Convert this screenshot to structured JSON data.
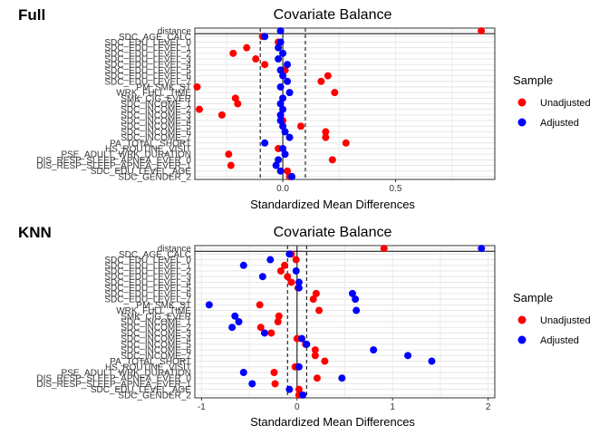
{
  "legend": {
    "title": "Sample",
    "entries": [
      {
        "label": "Unadjusted",
        "color": "#ff0000"
      },
      {
        "label": "Adjusted",
        "color": "#0000ff"
      }
    ]
  },
  "chart_data": [
    {
      "type": "scatter",
      "panel_label": "Full",
      "title": "Covariate Balance",
      "xlabel": "Standardized Mean Differences",
      "ylabel": "",
      "xlim": [
        -0.39,
        0.94
      ],
      "xticks": [
        "0.0",
        "0.5"
      ],
      "xtick_values": [
        0,
        0.5
      ],
      "thresholds": [
        -0.1,
        0.1
      ],
      "grid": true,
      "legend_position": "right",
      "categories": [
        "distance",
        "SDC_AGE_CALC",
        "SDC_EDU_LEVEL_0",
        "SDC_EDU_LEVEL_1",
        "SDC_EDU_LEVEL_2",
        "SDC_EDU_LEVEL_3",
        "SDC_EDU_LEVEL_4",
        "SDC_EDU_LEVEL_5",
        "SDC_EDU_LEVEL_6",
        "SDC_EDU_LEVEL_7",
        "PM_SMK_ST",
        "WRK_FULL_TIME",
        "SMK_CIG_EVER",
        "SDC_INCOME_1",
        "SDC_INCOME_2",
        "SDC_INCOME_3",
        "SDC_INCOME_4",
        "SDC_INCOME_5",
        "SDC_INCOME_6",
        "SDC_INCOME_7",
        "PA_TOTAL_SHORT",
        "HS_ROUTINE_VISIT",
        "PSE_ADULT_WRK_DURATION",
        "DIS_RESP_SLEEP_APNEA_EVER_0",
        "DIS_RESP_SLEEP_APNEA_EVER_1",
        "SDC_EDU_LEVEL_AGE",
        "SDC_GENDER_2"
      ],
      "series": [
        {
          "name": "Unadjusted",
          "color": "#ff0000",
          "values": [
            0.88,
            -0.09,
            -0.02,
            -0.16,
            -0.22,
            -0.12,
            -0.08,
            0.01,
            0.2,
            0.17,
            -0.38,
            0.23,
            -0.21,
            -0.2,
            -0.37,
            -0.27,
            0.0,
            0.08,
            0.19,
            0.19,
            0.28,
            -0.02,
            -0.24,
            0.22,
            -0.23,
            0.02,
            0.03
          ]
        },
        {
          "name": "Adjusted",
          "color": "#0000ff",
          "values": [
            -0.01,
            -0.08,
            -0.01,
            -0.02,
            0.0,
            -0.02,
            0.02,
            -0.01,
            0.0,
            0.02,
            -0.01,
            0.03,
            0.0,
            -0.01,
            0.0,
            -0.01,
            -0.01,
            0.0,
            0.01,
            0.03,
            -0.08,
            0.0,
            0.01,
            -0.02,
            -0.03,
            -0.01,
            0.04
          ]
        }
      ]
    },
    {
      "type": "scatter",
      "panel_label": "KNN",
      "title": "Covariate Balance",
      "xlabel": "Standardized Mean Differences",
      "ylabel": "",
      "xlim": [
        -1.07,
        2.07
      ],
      "xticks": [
        "-1",
        "0",
        "1",
        "2"
      ],
      "xtick_values": [
        -1,
        0,
        1,
        2
      ],
      "thresholds": [
        -0.1,
        0.1
      ],
      "grid": true,
      "legend_position": "right",
      "categories": [
        "distance",
        "SDC_AGE_CALC",
        "SDC_EDU_LEVEL_0",
        "SDC_EDU_LEVEL_1",
        "SDC_EDU_LEVEL_2",
        "SDC_EDU_LEVEL_3",
        "SDC_EDU_LEVEL_4",
        "SDC_EDU_LEVEL_5",
        "SDC_EDU_LEVEL_6",
        "SDC_EDU_LEVEL_7",
        "PM_SMK_ST",
        "WRK_FULL_TIME",
        "SMK_CIG_EVER",
        "SDC_INCOME_1",
        "SDC_INCOME_2",
        "SDC_INCOME_3",
        "SDC_INCOME_4",
        "SDC_INCOME_5",
        "SDC_INCOME_6",
        "SDC_INCOME_7",
        "PA_TOTAL_SHORT",
        "HS_ROUTINE_VISIT",
        "PSE_ADULT_WRK_DURATION",
        "DIS_RESP_SLEEP_APNEA_EVER_0",
        "DIS_RESP_SLEEP_APNEA_EVER_1",
        "SDC_EDU_LEVEL_AGE",
        "SDC_GENDER_2"
      ],
      "series": [
        {
          "name": "Unadjusted",
          "color": "#ff0000",
          "values": [
            0.91,
            -0.06,
            -0.01,
            -0.13,
            -0.17,
            -0.1,
            -0.06,
            0.01,
            0.2,
            0.17,
            -0.39,
            0.23,
            -0.19,
            -0.2,
            -0.38,
            -0.27,
            0.0,
            0.09,
            0.19,
            0.19,
            0.29,
            -0.02,
            -0.24,
            0.21,
            -0.23,
            0.02,
            0.02
          ]
        },
        {
          "name": "Adjusted",
          "color": "#0000ff",
          "values": [
            1.93,
            -0.08,
            -0.28,
            -0.56,
            -0.01,
            -0.36,
            0.02,
            0.02,
            0.58,
            0.61,
            -0.92,
            0.62,
            -0.65,
            -0.61,
            -0.68,
            -0.34,
            0.05,
            0.1,
            0.8,
            1.16,
            1.41,
            0.02,
            -0.56,
            0.47,
            -0.47,
            -0.08,
            0.06
          ]
        }
      ]
    }
  ]
}
